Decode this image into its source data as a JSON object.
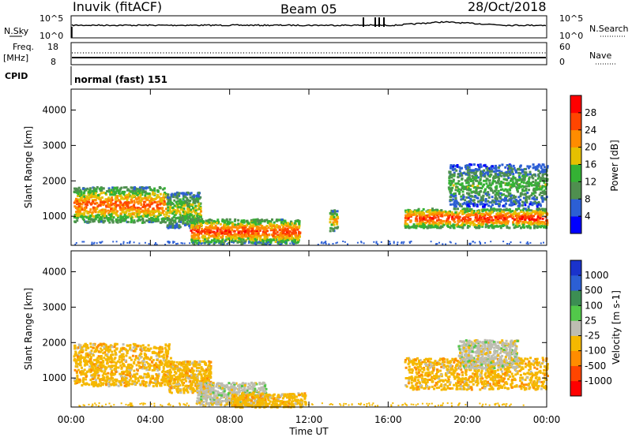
{
  "header": {
    "station": "Inuvik (fitACF)",
    "beam": "Beam 05",
    "date": "28/Oct/2018"
  },
  "nsky_panel": {
    "left_label": "N.Sky",
    "left_tick_top": "10^5",
    "left_tick_bottom": "10^0",
    "right_tick_top": "10^5",
    "right_tick_bottom": "10^0",
    "right_label": "N.Search"
  },
  "freq_panel": {
    "left_label_1": "Freq.",
    "left_label_2": "[MHz]",
    "left_tick_top": "18",
    "left_tick_bottom": "8",
    "right_tick_top": "60",
    "right_tick_bottom": "0",
    "right_label": "Nave"
  },
  "cpid": {
    "label": "CPID",
    "mode": "normal (fast) 151"
  },
  "colors": {
    "power": [
      "#0000ff",
      "#2c5fd4",
      "#4f8f4f",
      "#34b234",
      "#e6c000",
      "#ff8c00",
      "#ff4500",
      "#ff0000"
    ],
    "velocity": [
      "#ff0000",
      "#ff4500",
      "#ff8c00",
      "#f5b800",
      "#bdbdb2",
      "#52c84a",
      "#3c8e53",
      "#2c5fd4",
      "#1a33cc"
    ]
  },
  "chart_data": [
    {
      "type": "heatmap",
      "title": "Power",
      "ylabel": "Slant Range [km]",
      "y_ticks": [
        "1000",
        "2000",
        "3000",
        "4000"
      ],
      "ylim": [
        180,
        4590
      ],
      "x_ticks": [
        "00:00",
        "04:00",
        "08:00",
        "12:00",
        "16:00",
        "20:00",
        "00:00"
      ],
      "xlim_hours": [
        0,
        24
      ],
      "colorbar": {
        "label": "Power [dB]",
        "ticks": [
          "4",
          "8",
          "12",
          "16",
          "20",
          "24",
          "28"
        ],
        "range": [
          0,
          32
        ]
      },
      "regions": [
        {
          "t0": 0.1,
          "t1": 4.8,
          "r0": 850,
          "r1": 1850,
          "peak": 26
        },
        {
          "t0": 4.8,
          "t1": 6.5,
          "r0": 700,
          "r1": 1700,
          "peak": 18
        },
        {
          "t0": 6.0,
          "t1": 11.5,
          "r0": 250,
          "r1": 950,
          "peak": 28
        },
        {
          "t0": 13.0,
          "t1": 13.4,
          "r0": 600,
          "r1": 1200,
          "peak": 22
        },
        {
          "t0": 16.8,
          "t1": 24.0,
          "r0": 700,
          "r1": 1250,
          "peak": 29
        },
        {
          "t0": 19.0,
          "t1": 24.0,
          "r0": 1300,
          "r1": 2500,
          "peak": 14
        }
      ]
    },
    {
      "type": "heatmap",
      "title": "Velocity",
      "ylabel": "Slant Range [km]",
      "y_ticks": [
        "1000",
        "2000",
        "3000",
        "4000"
      ],
      "ylim": [
        180,
        4590
      ],
      "x_ticks": [
        "00:00",
        "04:00",
        "08:00",
        "12:00",
        "16:00",
        "20:00",
        "00:00"
      ],
      "xlim_hours": [
        0,
        24
      ],
      "x_axis_label": "Time UT",
      "colorbar": {
        "label": "Velocity [m s-1]",
        "ticks": [
          "1000",
          "500",
          "100",
          "25",
          "-25",
          "-100",
          "-500",
          "-1000"
        ]
      },
      "regions": [
        {
          "t0": 0.1,
          "t1": 5.0,
          "r0": 800,
          "r1": 2000,
          "class": "-100"
        },
        {
          "t0": 4.8,
          "t1": 7.0,
          "r0": 600,
          "r1": 1500,
          "class": "-100"
        },
        {
          "t0": 6.3,
          "t1": 9.8,
          "r0": 250,
          "r1": 900,
          "class": "-25"
        },
        {
          "t0": 8.0,
          "t1": 11.8,
          "r0": 200,
          "r1": 600,
          "class": "-100"
        },
        {
          "t0": 16.8,
          "t1": 24.0,
          "r0": 700,
          "r1": 1600,
          "class": "-100"
        },
        {
          "t0": 19.5,
          "t1": 22.5,
          "r0": 1300,
          "r1": 2100,
          "class": "-25"
        }
      ]
    }
  ]
}
